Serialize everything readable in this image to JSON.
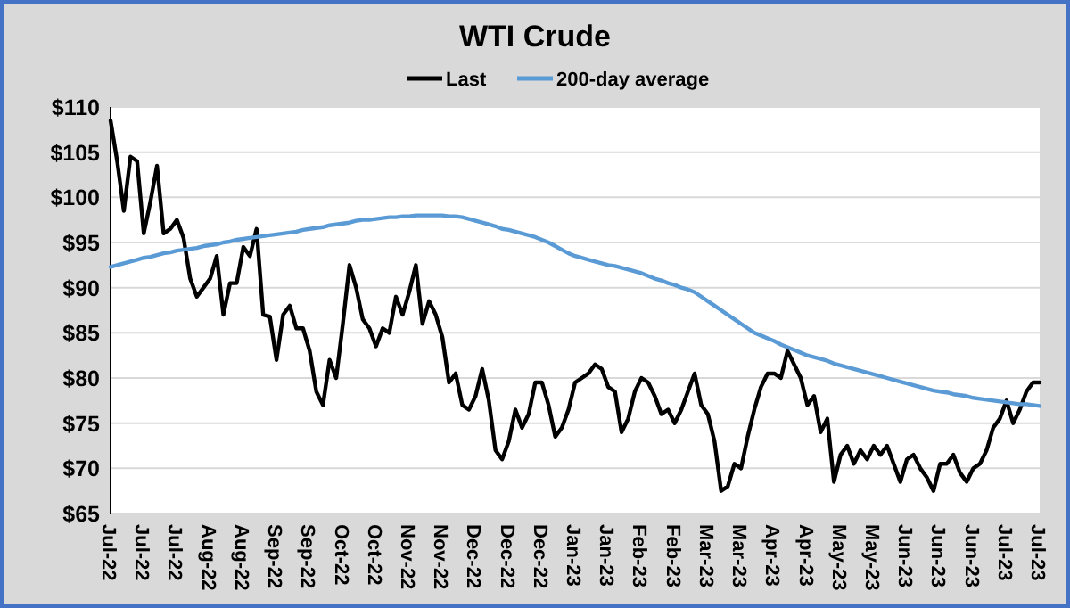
{
  "chart_data": {
    "type": "line",
    "title": "WTI Crude",
    "legend": "top",
    "grid": "y",
    "line_style": "solid",
    "marker": "none",
    "categories": [
      "Jul-22",
      null,
      null,
      null,
      null,
      "Jul-22",
      null,
      null,
      null,
      null,
      "Jul-22",
      null,
      null,
      null,
      null,
      "Aug-22",
      null,
      null,
      null,
      null,
      "Aug-22",
      null,
      null,
      null,
      null,
      "Sep-22",
      null,
      null,
      null,
      null,
      "Sep-22",
      null,
      null,
      null,
      null,
      "Oct-22",
      null,
      null,
      null,
      null,
      "Oct-22",
      null,
      null,
      null,
      null,
      "Nov-22",
      null,
      null,
      null,
      null,
      "Nov-22",
      null,
      null,
      null,
      null,
      "Dec-22",
      null,
      null,
      null,
      null,
      "Dec-22",
      null,
      null,
      null,
      null,
      "Dec-22",
      null,
      null,
      null,
      null,
      "Jan-23",
      null,
      null,
      null,
      null,
      "Jan-23",
      null,
      null,
      null,
      null,
      "Feb-23",
      null,
      null,
      null,
      null,
      "Feb-23",
      null,
      null,
      null,
      null,
      "Mar-23",
      null,
      null,
      null,
      null,
      "Mar-23",
      null,
      null,
      null,
      null,
      "Apr-23",
      null,
      null,
      null,
      null,
      "Apr-23",
      null,
      null,
      null,
      null,
      "May-23",
      null,
      null,
      null,
      null,
      "May-23",
      null,
      null,
      null,
      null,
      "Jun-23",
      null,
      null,
      null,
      null,
      "Jun-23",
      null,
      null,
      null,
      null,
      "Jun-23",
      null,
      null,
      null,
      null,
      "Jul-23",
      null,
      null,
      null,
      null,
      "Jul-23"
    ],
    "ylim": [
      65,
      110
    ],
    "yticks": [
      {
        "value": 65,
        "label": "$65"
      },
      {
        "value": 70,
        "label": "$70"
      },
      {
        "value": 75,
        "label": "$75"
      },
      {
        "value": 80,
        "label": "$80"
      },
      {
        "value": 85,
        "label": "$85"
      },
      {
        "value": 90,
        "label": "$90"
      },
      {
        "value": 95,
        "label": "$95"
      },
      {
        "value": 100,
        "label": "$100"
      },
      {
        "value": 105,
        "label": "$105"
      },
      {
        "value": 110,
        "label": "$110"
      }
    ],
    "series": [
      {
        "name": "Last",
        "color": "#000000",
        "values": [
          108.5,
          104,
          98.5,
          104.5,
          104,
          96,
          99.5,
          103.5,
          96,
          96.5,
          97.5,
          95.5,
          91,
          89,
          90,
          91,
          93.5,
          87,
          90.5,
          90.5,
          94.5,
          93.5,
          96.5,
          87,
          86.8,
          82,
          87,
          88,
          85.5,
          85.5,
          83,
          78.5,
          77,
          82,
          80,
          86,
          92.5,
          90,
          86.5,
          85.5,
          83.5,
          85.5,
          85,
          89,
          87,
          89.5,
          92.5,
          86,
          88.5,
          87,
          84.5,
          79.5,
          80.5,
          77,
          76.5,
          78,
          81,
          77.5,
          72,
          71,
          73,
          76.5,
          74.5,
          76,
          79.5,
          79.5,
          77,
          73.5,
          74.5,
          76.5,
          79.5,
          80,
          80.5,
          81.5,
          81,
          79,
          78.5,
          74,
          75.5,
          78.5,
          80,
          79.5,
          78,
          76,
          76.5,
          75,
          76.5,
          78.5,
          80.5,
          77,
          76,
          73,
          67.5,
          68,
          70.5,
          70,
          73.5,
          76.5,
          79,
          80.5,
          80.5,
          80,
          83,
          81.5,
          80,
          77,
          78,
          74,
          75.5,
          68.5,
          71.5,
          72.5,
          70.5,
          72,
          71,
          72.5,
          71.5,
          72.5,
          70.5,
          68.5,
          71,
          71.5,
          70,
          69,
          67.5,
          70.5,
          70.5,
          71.5,
          69.5,
          68.5,
          70,
          70.5,
          72,
          74.5,
          75.5,
          77.5,
          75,
          76.5,
          78.5,
          79.5,
          79.5
        ]
      },
      {
        "name": "200-day average",
        "color": "#5b9bd5",
        "values": [
          92.3,
          92.5,
          92.7,
          92.9,
          93.1,
          93.3,
          93.4,
          93.6,
          93.8,
          93.9,
          94.1,
          94.2,
          94.3,
          94.4,
          94.6,
          94.7,
          94.8,
          95.0,
          95.1,
          95.3,
          95.4,
          95.5,
          95.6,
          95.7,
          95.8,
          95.9,
          96.0,
          96.1,
          96.2,
          96.4,
          96.5,
          96.6,
          96.7,
          96.9,
          97.0,
          97.1,
          97.2,
          97.4,
          97.5,
          97.5,
          97.6,
          97.7,
          97.8,
          97.8,
          97.9,
          97.9,
          98.0,
          98.0,
          98.0,
          98.0,
          98.0,
          97.9,
          97.9,
          97.8,
          97.6,
          97.4,
          97.2,
          97.0,
          96.8,
          96.5,
          96.4,
          96.2,
          96.0,
          95.8,
          95.6,
          95.3,
          95.0,
          94.6,
          94.2,
          93.8,
          93.5,
          93.3,
          93.1,
          92.9,
          92.7,
          92.5,
          92.4,
          92.2,
          92.0,
          91.8,
          91.6,
          91.3,
          91.0,
          90.8,
          90.5,
          90.3,
          90.0,
          89.8,
          89.5,
          89.0,
          88.5,
          88.0,
          87.5,
          87.0,
          86.5,
          86.0,
          85.5,
          85.0,
          84.7,
          84.4,
          84.1,
          83.7,
          83.4,
          83.1,
          82.8,
          82.5,
          82.3,
          82.1,
          81.9,
          81.6,
          81.4,
          81.2,
          81.0,
          80.8,
          80.6,
          80.4,
          80.2,
          80.0,
          79.8,
          79.6,
          79.4,
          79.2,
          79.0,
          78.8,
          78.6,
          78.5,
          78.4,
          78.2,
          78.1,
          78.0,
          77.8,
          77.7,
          77.6,
          77.5,
          77.4,
          77.3,
          77.2,
          77.1,
          77.1,
          77.0,
          76.9
        ]
      }
    ]
  }
}
